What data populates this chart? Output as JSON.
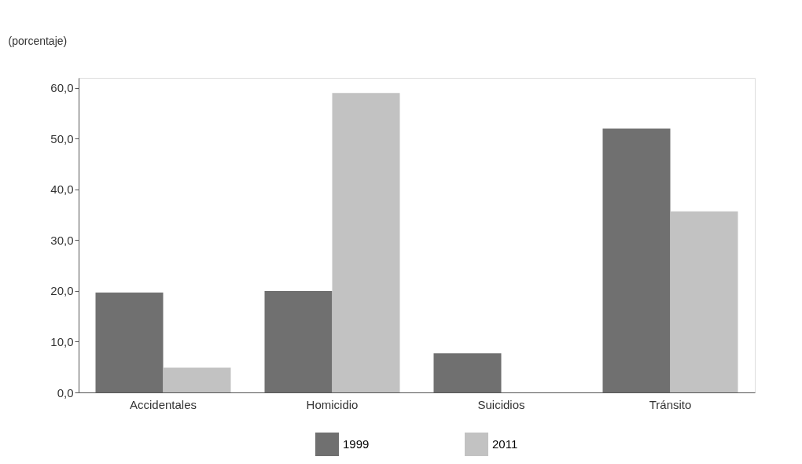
{
  "chart_data": {
    "type": "bar",
    "ylabel": "(porcentaje)",
    "categories": [
      "Accidentales",
      "Homicidio",
      "Suicidios",
      "Tránsito"
    ],
    "series": [
      {
        "name": "1999",
        "color": "#707070",
        "values": [
          19.7,
          20.0,
          7.7,
          52.0
        ]
      },
      {
        "name": "2011",
        "color": "#c2c2c2",
        "values": [
          4.9,
          59.0,
          null,
          35.7
        ]
      }
    ],
    "ylim": [
      0,
      62
    ],
    "yticks": [
      {
        "value": 0,
        "label": "0,0"
      },
      {
        "value": 10,
        "label": "10,0"
      },
      {
        "value": 20,
        "label": "20,0"
      },
      {
        "value": 30,
        "label": "30,0"
      },
      {
        "value": 40,
        "label": "40,0"
      },
      {
        "value": 50,
        "label": "50,0"
      },
      {
        "value": 60,
        "label": "60,0"
      }
    ],
    "grid": false,
    "legend": "bottom"
  }
}
